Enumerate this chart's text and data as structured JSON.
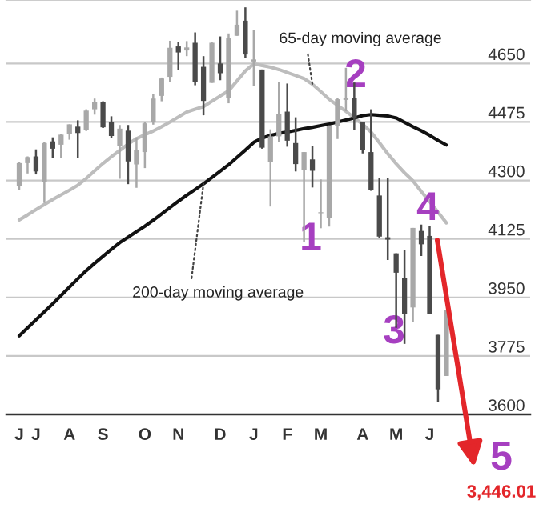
{
  "chart_data": {
    "type": "candlestick",
    "categories": [
      "J",
      null,
      "J",
      null,
      null,
      null,
      "A",
      null,
      null,
      null,
      "S",
      null,
      null,
      null,
      null,
      "O",
      null,
      null,
      null,
      "N",
      null,
      null,
      null,
      null,
      "D",
      null,
      null,
      null,
      "J",
      null,
      null,
      null,
      "F",
      null,
      null,
      null,
      "M",
      null,
      null,
      null,
      null,
      "A",
      null,
      null,
      null,
      "M",
      null,
      null,
      null,
      "J",
      null,
      null
    ],
    "ohlc": [
      [
        4284,
        4356,
        4271,
        4352
      ],
      [
        4352,
        4372,
        4321,
        4370
      ],
      [
        4372,
        4393,
        4318,
        4327
      ],
      [
        4296,
        4415,
        4233,
        4412
      ],
      [
        4417,
        4429,
        4367,
        4395
      ],
      [
        4407,
        4440,
        4367,
        4437
      ],
      [
        4438,
        4468,
        4422,
        4468
      ],
      [
        4461,
        4480,
        4367,
        4442
      ],
      [
        4450,
        4513,
        4448,
        4509
      ],
      [
        4513,
        4545,
        4497,
        4535
      ],
      [
        4536,
        4537,
        4457,
        4459
      ],
      [
        4474,
        4492,
        4427,
        4433
      ],
      [
        4402,
        4466,
        4305,
        4455
      ],
      [
        4449,
        4466,
        4289,
        4357
      ],
      [
        4348,
        4429,
        4278,
        4391
      ],
      [
        4385,
        4475,
        4337,
        4471
      ],
      [
        4474,
        4559,
        4467,
        4545
      ],
      [
        4553,
        4608,
        4537,
        4605
      ],
      [
        4610,
        4718,
        4595,
        4697
      ],
      [
        4701,
        4714,
        4630,
        4683
      ],
      [
        4689,
        4717,
        4672,
        4698
      ],
      [
        4712,
        4743,
        4585,
        4595
      ],
      [
        4640,
        4672,
        4495,
        4538
      ],
      [
        4592,
        4713,
        4592,
        4712
      ],
      [
        4650,
        4731,
        4600,
        4621
      ],
      [
        4548,
        4740,
        4531,
        4725
      ],
      [
        4733,
        4808,
        4733,
        4766
      ],
      [
        4778,
        4818,
        4666,
        4677
      ],
      [
        4656,
        4749,
        4582,
        4662
      ],
      [
        4632,
        4632,
        4395,
        4398
      ],
      [
        4356,
        4453,
        4222,
        4432
      ],
      [
        4432,
        4595,
        4414,
        4500
      ],
      [
        4506,
        4590,
        4401,
        4419
      ],
      [
        4412,
        4489,
        4327,
        4349
      ],
      [
        4332,
        4385,
        4115,
        4385
      ],
      [
        4363,
        4402,
        4279,
        4329
      ],
      [
        4202,
        4303,
        4157,
        4204
      ],
      [
        4188,
        4465,
        4162,
        4463
      ],
      [
        4462,
        4546,
        4424,
        4543
      ],
      [
        4541,
        4637,
        4507,
        4546
      ],
      [
        4547,
        4593,
        4450,
        4488
      ],
      [
        4474,
        4474,
        4381,
        4392
      ],
      [
        4385,
        4513,
        4269,
        4272
      ],
      [
        4255,
        4308,
        4128,
        4132
      ],
      [
        4130,
        4307,
        4062,
        4123
      ],
      [
        4082,
        4082,
        3859,
        4024
      ],
      [
        4009,
        4091,
        3811,
        3901
      ],
      [
        3920,
        4158,
        3876,
        4158
      ],
      [
        4149,
        4168,
        4074,
        4109
      ],
      [
        4134,
        4164,
        3900,
        3901
      ],
      [
        3838,
        3838,
        3637,
        3675
      ],
      [
        3715,
        3913,
        3715,
        3912
      ]
    ],
    "colors": [
      "#a8a8a8",
      "#a8a8a8",
      "#4a4a4a",
      "#a8a8a8",
      "#4a4a4a",
      "#a8a8a8",
      "#a8a8a8",
      "#4a4a4a",
      "#a8a8a8",
      "#a8a8a8",
      "#4a4a4a",
      "#4a4a4a",
      "#a8a8a8",
      "#4a4a4a",
      "#a8a8a8",
      "#a8a8a8",
      "#a8a8a8",
      "#a8a8a8",
      "#a8a8a8",
      "#4a4a4a",
      "#a8a8a8",
      "#4a4a4a",
      "#4a4a4a",
      "#a8a8a8",
      "#4a4a4a",
      "#a8a8a8",
      "#a8a8a8",
      "#4a4a4a",
      "#a8a8a8",
      "#4a4a4a",
      "#a8a8a8",
      "#a8a8a8",
      "#4a4a4a",
      "#4a4a4a",
      "#a8a8a8",
      "#4a4a4a",
      "#a8a8a8",
      "#a8a8a8",
      "#a8a8a8",
      "#a8a8a8",
      "#4a4a4a",
      "#4a4a4a",
      "#4a4a4a",
      "#4a4a4a",
      "#4a4a4a",
      "#4a4a4a",
      "#4a4a4a",
      "#a8a8a8",
      "#4a4a4a",
      "#4a4a4a",
      "#4a4a4a",
      "#a8a8a8"
    ],
    "series": [
      {
        "type": "line",
        "name": "65-day moving average",
        "color": "#bdbdbd",
        "values": [
          4182,
          4197,
          4213,
          4228,
          4243,
          4257,
          4271,
          4286,
          4306,
          4329,
          4351,
          4371,
          4390,
          4409,
          4425,
          4437,
          4448,
          4461,
          4475,
          4490,
          4505,
          4513,
          4521,
          4537,
          4553,
          4568,
          4598,
          4628,
          4649,
          4644,
          4639,
          4632,
          4623,
          4614,
          4605,
          4588,
          4566,
          4543,
          4525,
          4507,
          4488,
          4468,
          4445,
          4413,
          4380,
          4350,
          4323,
          4299,
          4267,
          4237,
          4205,
          4173
        ]
      },
      {
        "type": "line",
        "name": "200-day moving average",
        "color": "#111111",
        "values": [
          3835,
          3859,
          3883,
          3907,
          3931,
          3956,
          3981,
          4006,
          4030,
          4052,
          4073,
          4094,
          4114,
          4130,
          4147,
          4163,
          4181,
          4200,
          4219,
          4238,
          4256,
          4273,
          4290,
          4309,
          4328,
          4347,
          4369,
          4391,
          4414,
          4427,
          4435,
          4441,
          4445,
          4450,
          4455,
          4459,
          4464,
          4469,
          4475,
          4481,
          4487,
          4494,
          4497,
          4495,
          4493,
          4487,
          4474,
          4461,
          4449,
          4435,
          4420,
          4406
        ]
      }
    ],
    "ylim": [
      3600,
      4840
    ],
    "yticks": [
      3600,
      3775,
      3950,
      4125,
      4300,
      4475,
      4650
    ],
    "grid": "y",
    "annotations": [
      "1",
      "2",
      "3",
      "4",
      "5",
      "3,446.01"
    ]
  }
}
